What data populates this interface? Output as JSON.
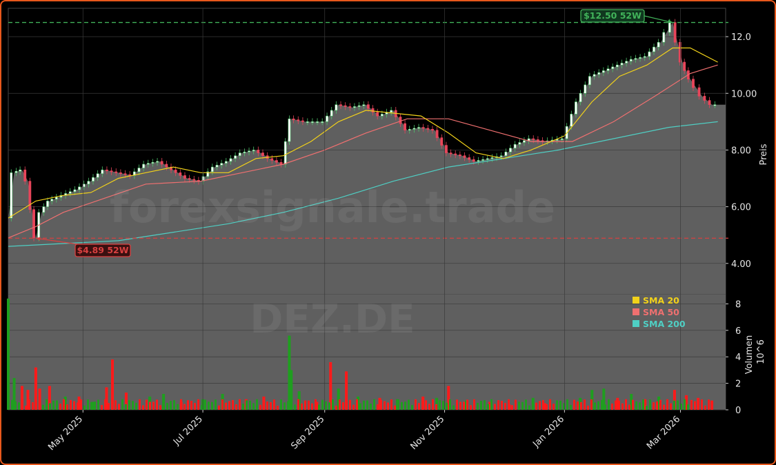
{
  "colors": {
    "background": "#000000",
    "frame_border": "#e8581c",
    "area_fill": "#5f5f5f",
    "grid": "#3a3a3a",
    "candle_up": "#4ec36b",
    "candle_down": "#e8455a",
    "sma20": "#f2d21a",
    "sma50": "#f07070",
    "sma200": "#4fcfc4",
    "vol_up": "#1f9e1f",
    "vol_down": "#ff1a1a",
    "high_line": "#41b35a",
    "low_line": "#d94040"
  },
  "watermark": {
    "main": "forexsignale.trade",
    "ticker": "DEZ.DE"
  },
  "chart_data": {
    "type": "line",
    "y_axis_price": {
      "label": "Preis",
      "ylim": [
        2.9,
        13.0
      ],
      "ticks": [
        "4.00",
        "6.00",
        "8.00",
        "10.00",
        "12.0"
      ]
    },
    "y_axis_volume": {
      "label": "Volumen",
      "exponent_label": "10^6",
      "ylim": [
        0,
        8.7
      ],
      "ticks": [
        "0",
        "2",
        "4",
        "6",
        "8"
      ]
    },
    "x_axis": {
      "ticks": [
        {
          "label": "May 2025",
          "date": "2025-05-01"
        },
        {
          "label": "Jul 2025",
          "date": "2025-07-01"
        },
        {
          "label": "Sep 2025",
          "date": "2025-09-01"
        },
        {
          "label": "Nov 2025",
          "date": "2025-11-01"
        },
        {
          "label": "Jan 2026",
          "date": "2026-01-01"
        },
        {
          "label": "Mar 2026",
          "date": "2026-03-01"
        }
      ],
      "range": [
        "2025-03-24",
        "2026-03-24"
      ]
    },
    "annotations": [
      {
        "label": "$12.50 52W",
        "value": 12.5,
        "date": "2026-02-25",
        "kind": "high"
      },
      {
        "label": "$4.89 52W",
        "value": 4.89,
        "date": "2025-04-07",
        "kind": "low"
      }
    ],
    "legend": {
      "position": "top-right of volume panel",
      "items": [
        {
          "label": "SMA 20",
          "color": "#f2d21a"
        },
        {
          "label": "SMA 50",
          "color": "#f07070"
        },
        {
          "label": "SMA 200",
          "color": "#4fcfc4"
        }
      ]
    },
    "close_series": {
      "name": "close",
      "points": [
        [
          "2025-03-24",
          5.6
        ],
        [
          "2025-03-27",
          7.2
        ],
        [
          "2025-03-31",
          7.3
        ],
        [
          "2025-04-03",
          6.9
        ],
        [
          "2025-04-07",
          4.9
        ],
        [
          "2025-04-10",
          5.8
        ],
        [
          "2025-04-14",
          6.2
        ],
        [
          "2025-04-21",
          6.4
        ],
        [
          "2025-04-28",
          6.6
        ],
        [
          "2025-05-05",
          6.9
        ],
        [
          "2025-05-12",
          7.3
        ],
        [
          "2025-05-19",
          7.2
        ],
        [
          "2025-05-26",
          7.1
        ],
        [
          "2025-06-02",
          7.5
        ],
        [
          "2025-06-09",
          7.6
        ],
        [
          "2025-06-16",
          7.3
        ],
        [
          "2025-06-23",
          7.0
        ],
        [
          "2025-06-30",
          6.9
        ],
        [
          "2025-07-07",
          7.4
        ],
        [
          "2025-07-14",
          7.6
        ],
        [
          "2025-07-21",
          7.9
        ],
        [
          "2025-07-28",
          8.0
        ],
        [
          "2025-08-04",
          7.7
        ],
        [
          "2025-08-11",
          7.5
        ],
        [
          "2025-08-15",
          9.1
        ],
        [
          "2025-08-22",
          9.0
        ],
        [
          "2025-09-01",
          9.0
        ],
        [
          "2025-09-08",
          9.6
        ],
        [
          "2025-09-15",
          9.5
        ],
        [
          "2025-09-22",
          9.6
        ],
        [
          "2025-09-29",
          9.2
        ],
        [
          "2025-10-06",
          9.4
        ],
        [
          "2025-10-13",
          8.7
        ],
        [
          "2025-10-20",
          8.8
        ],
        [
          "2025-10-27",
          8.7
        ],
        [
          "2025-11-03",
          7.9
        ],
        [
          "2025-11-10",
          7.8
        ],
        [
          "2025-11-17",
          7.6
        ],
        [
          "2025-11-24",
          7.7
        ],
        [
          "2025-12-01",
          7.8
        ],
        [
          "2025-12-08",
          8.2
        ],
        [
          "2025-12-15",
          8.4
        ],
        [
          "2025-12-22",
          8.3
        ],
        [
          "2026-01-01",
          8.4
        ],
        [
          "2026-01-08",
          9.7
        ],
        [
          "2026-01-15",
          10.6
        ],
        [
          "2026-01-22",
          10.8
        ],
        [
          "2026-01-29",
          11.0
        ],
        [
          "2026-02-05",
          11.2
        ],
        [
          "2026-02-12",
          11.3
        ],
        [
          "2026-02-19",
          11.8
        ],
        [
          "2026-02-25",
          12.5
        ],
        [
          "2026-03-02",
          11.1
        ],
        [
          "2026-03-06",
          10.5
        ],
        [
          "2026-03-12",
          9.9
        ],
        [
          "2026-03-17",
          9.6
        ],
        [
          "2026-03-20",
          9.6
        ]
      ]
    },
    "sma20": [
      [
        "2025-03-24",
        5.6
      ],
      [
        "2025-04-07",
        6.2
      ],
      [
        "2025-04-21",
        6.4
      ],
      [
        "2025-05-05",
        6.5
      ],
      [
        "2025-05-19",
        7.0
      ],
      [
        "2025-06-02",
        7.2
      ],
      [
        "2025-06-16",
        7.4
      ],
      [
        "2025-06-30",
        7.2
      ],
      [
        "2025-07-14",
        7.2
      ],
      [
        "2025-07-28",
        7.7
      ],
      [
        "2025-08-11",
        7.8
      ],
      [
        "2025-08-25",
        8.3
      ],
      [
        "2025-09-08",
        9.0
      ],
      [
        "2025-09-22",
        9.4
      ],
      [
        "2025-10-06",
        9.3
      ],
      [
        "2025-10-20",
        9.2
      ],
      [
        "2025-11-03",
        8.6
      ],
      [
        "2025-11-17",
        7.9
      ],
      [
        "2025-12-01",
        7.7
      ],
      [
        "2025-12-15",
        8.0
      ],
      [
        "2026-01-01",
        8.5
      ],
      [
        "2026-01-15",
        9.7
      ],
      [
        "2026-01-29",
        10.6
      ],
      [
        "2026-02-12",
        11.0
      ],
      [
        "2026-02-25",
        11.6
      ],
      [
        "2026-03-06",
        11.6
      ],
      [
        "2026-03-20",
        11.1
      ]
    ],
    "sma50": [
      [
        "2025-03-24",
        4.9
      ],
      [
        "2025-04-07",
        5.3
      ],
      [
        "2025-04-21",
        5.8
      ],
      [
        "2025-05-12",
        6.3
      ],
      [
        "2025-06-02",
        6.8
      ],
      [
        "2025-06-30",
        6.9
      ],
      [
        "2025-07-21",
        7.2
      ],
      [
        "2025-08-11",
        7.5
      ],
      [
        "2025-09-01",
        8.0
      ],
      [
        "2025-09-22",
        8.6
      ],
      [
        "2025-10-13",
        9.1
      ],
      [
        "2025-11-03",
        9.1
      ],
      [
        "2025-11-24",
        8.7
      ],
      [
        "2025-12-15",
        8.3
      ],
      [
        "2026-01-05",
        8.3
      ],
      [
        "2026-01-26",
        9.0
      ],
      [
        "2026-02-16",
        9.9
      ],
      [
        "2026-03-06",
        10.7
      ],
      [
        "2026-03-20",
        11.0
      ]
    ],
    "sma200": [
      [
        "2025-03-24",
        4.6
      ],
      [
        "2025-04-21",
        4.7
      ],
      [
        "2025-05-19",
        4.8
      ],
      [
        "2025-06-16",
        5.1
      ],
      [
        "2025-07-14",
        5.4
      ],
      [
        "2025-08-11",
        5.8
      ],
      [
        "2025-09-08",
        6.3
      ],
      [
        "2025-10-06",
        6.9
      ],
      [
        "2025-11-03",
        7.4
      ],
      [
        "2025-12-01",
        7.7
      ],
      [
        "2025-12-29",
        8.0
      ],
      [
        "2026-01-26",
        8.4
      ],
      [
        "2026-02-23",
        8.8
      ],
      [
        "2026-03-20",
        9.0
      ]
    ],
    "volume_series": {
      "unit": "millions",
      "points": [
        [
          "2025-03-24",
          8.4,
          "up"
        ],
        [
          "2025-03-27",
          2.4,
          "up"
        ],
        [
          "2025-03-31",
          1.8,
          "down"
        ],
        [
          "2025-04-03",
          1.5,
          "down"
        ],
        [
          "2025-04-07",
          3.2,
          "down"
        ],
        [
          "2025-04-09",
          1.6,
          "down"
        ],
        [
          "2025-04-14",
          1.8,
          "down"
        ],
        [
          "2025-04-22",
          1.0,
          "up"
        ],
        [
          "2025-04-29",
          1.0,
          "down"
        ],
        [
          "2025-05-06",
          0.6,
          "up"
        ],
        [
          "2025-05-13",
          1.7,
          "down"
        ],
        [
          "2025-05-16",
          3.8,
          "down"
        ],
        [
          "2025-05-23",
          1.3,
          "down"
        ],
        [
          "2025-06-04",
          1.0,
          "up"
        ],
        [
          "2025-06-11",
          1.2,
          "up"
        ],
        [
          "2025-06-20",
          0.6,
          "down"
        ],
        [
          "2025-07-01",
          0.8,
          "up"
        ],
        [
          "2025-07-11",
          1.2,
          "up"
        ],
        [
          "2025-07-23",
          0.8,
          "down"
        ],
        [
          "2025-08-01",
          1.0,
          "down"
        ],
        [
          "2025-08-14",
          5.6,
          "up"
        ],
        [
          "2025-08-15",
          3.0,
          "up"
        ],
        [
          "2025-08-19",
          1.4,
          "up"
        ],
        [
          "2025-08-28",
          0.6,
          "down"
        ],
        [
          "2025-09-04",
          3.6,
          "down"
        ],
        [
          "2025-09-08",
          1.6,
          "up"
        ],
        [
          "2025-09-12",
          2.9,
          "down"
        ],
        [
          "2025-09-18",
          1.0,
          "up"
        ],
        [
          "2025-09-29",
          0.9,
          "down"
        ],
        [
          "2025-10-08",
          0.8,
          "up"
        ],
        [
          "2025-10-21",
          1.0,
          "down"
        ],
        [
          "2025-10-28",
          0.9,
          "up"
        ],
        [
          "2025-11-03",
          1.8,
          "down"
        ],
        [
          "2025-11-12",
          0.7,
          "up"
        ],
        [
          "2025-11-24",
          0.6,
          "down"
        ],
        [
          "2025-12-04",
          0.4,
          "down"
        ],
        [
          "2025-12-16",
          0.9,
          "up"
        ],
        [
          "2025-12-22",
          0.5,
          "down"
        ],
        [
          "2026-01-09",
          0.9,
          "up"
        ],
        [
          "2026-01-15",
          1.5,
          "up"
        ],
        [
          "2026-01-21",
          1.6,
          "up"
        ],
        [
          "2026-01-28",
          0.9,
          "down"
        ],
        [
          "2026-02-04",
          1.2,
          "up"
        ],
        [
          "2026-02-11",
          0.8,
          "down"
        ],
        [
          "2026-02-18",
          1.0,
          "up"
        ],
        [
          "2026-02-26",
          1.5,
          "down"
        ],
        [
          "2026-03-04",
          1.1,
          "down"
        ],
        [
          "2026-03-10",
          0.9,
          "down"
        ],
        [
          "2026-03-17",
          0.7,
          "down"
        ]
      ]
    }
  }
}
